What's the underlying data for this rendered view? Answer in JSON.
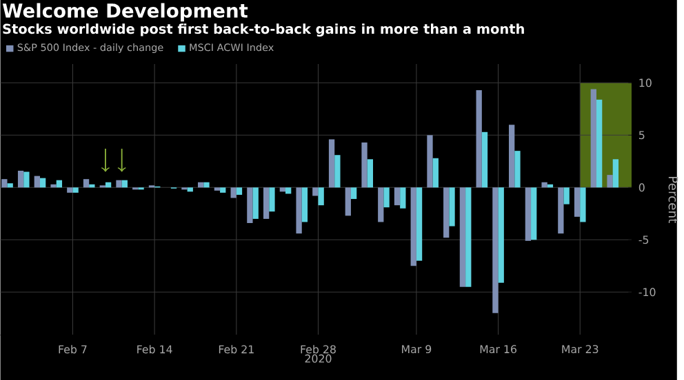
{
  "chart_data": {
    "type": "bar",
    "title": "Welcome Development",
    "subtitle": "Stocks worldwide post first back-to-back gains in more than a month",
    "categories": [
      null,
      null,
      null,
      null,
      "Feb 7",
      null,
      null,
      null,
      null,
      "Feb 14",
      null,
      null,
      null,
      null,
      "Feb 21",
      null,
      null,
      null,
      null,
      "Feb 28",
      null,
      null,
      null,
      null,
      null,
      "Mar 9",
      null,
      null,
      null,
      null,
      "Mar 16",
      null,
      null,
      null,
      null,
      "Mar 23",
      null,
      null
    ],
    "series": [
      {
        "name": "S&P 500 Index - daily change",
        "color": "#7f8fb5",
        "values": [
          0.8,
          1.6,
          1.1,
          0.3,
          -0.5,
          0.8,
          0.2,
          0.7,
          -0.2,
          0.2,
          0,
          -0.2,
          0.5,
          -0.3,
          -1.0,
          -3.4,
          -3.0,
          -0.4,
          -4.4,
          -0.8,
          4.6,
          -2.7,
          4.3,
          -3.3,
          -1.7,
          -7.5,
          5.0,
          -4.8,
          -9.5,
          9.3,
          -12.0,
          6.0,
          -5.1,
          0.5,
          -4.4,
          -2.8,
          9.4,
          1.2
        ]
      },
      {
        "name": "MSCI ACWI Index",
        "color": "#5fd3e0",
        "values": [
          0.4,
          1.5,
          0.9,
          0.7,
          -0.5,
          0.3,
          0.5,
          0.7,
          -0.2,
          0.1,
          -0.1,
          -0.4,
          0.5,
          -0.5,
          -0.7,
          -3.0,
          -2.3,
          -0.6,
          -3.3,
          -1.7,
          3.1,
          -1.1,
          2.7,
          -1.9,
          -2.0,
          -7.0,
          2.8,
          -3.7,
          -9.5,
          5.3,
          -9.1,
          3.5,
          -5.0,
          0.3,
          -1.6,
          -3.3,
          8.4,
          2.7
        ]
      }
    ],
    "ylabel": "Percent",
    "ylim": [
      -14.1,
      11.8
    ],
    "yticks": [
      -10,
      -5,
      0,
      5,
      10
    ],
    "annotations": [
      "2020"
    ],
    "grid": true,
    "legend": "top left"
  }
}
